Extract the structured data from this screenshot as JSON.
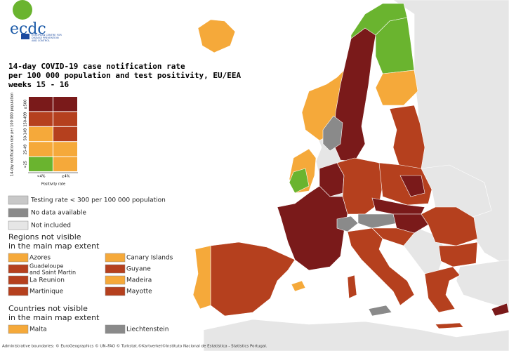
{
  "logo": {
    "name": "ecdc",
    "subtitle": [
      "EUROPEAN CENTRE FOR",
      "DISEASE PREVENTION",
      "AND CONTROL"
    ]
  },
  "title": [
    "14-day COVID-19 case notification rate",
    "per 100 000 population and test positivity, EU/EEA",
    "weeks 15 - 16"
  ],
  "matrix": {
    "y_label": "14-day notification rate per 100 000 population",
    "rows": [
      "≥500",
      "150-499",
      "50-149",
      "25-49",
      "<25"
    ],
    "columns": [
      "<4%",
      "≥4%"
    ],
    "x_label": "Positivity rate",
    "colors": [
      [
        "#7a1a1a",
        "#7a1a1a"
      ],
      [
        "#b5401e",
        "#b5401e"
      ],
      [
        "#f5a93a",
        "#b5401e"
      ],
      [
        "#f5a93a",
        "#f5a93a"
      ],
      [
        "#6ab42f",
        "#f5a93a"
      ]
    ]
  },
  "status_legend": [
    {
      "label": "Testing rate < 300 per 100 000 population",
      "color": "#c8c8c8"
    },
    {
      "label": "No data available",
      "color": "#8a8a8a"
    },
    {
      "label": "Not included",
      "color": "#e6e6e6"
    }
  ],
  "regions": {
    "heading": [
      "Regions not visible",
      "in the main map extent"
    ],
    "items": [
      {
        "label": "Azores",
        "color": "#f5a93a"
      },
      {
        "label": "Canary Islands",
        "color": "#f5a93a"
      },
      {
        "label": [
          "Guadeloupe",
          "and Saint Martin"
        ],
        "color": "#b5401e"
      },
      {
        "label": "Guyane",
        "color": "#b5401e"
      },
      {
        "label": "La Reunion",
        "color": "#b5401e"
      },
      {
        "label": "Madeira",
        "color": "#f5a93a"
      },
      {
        "label": "Martinique",
        "color": "#b5401e"
      },
      {
        "label": "Mayotte",
        "color": "#b5401e"
      }
    ]
  },
  "countries": {
    "heading": [
      "Countries not visible",
      "in the main map extent"
    ],
    "items": [
      {
        "label": "Malta",
        "color": "#f5a93a"
      },
      {
        "label": "Liechtenstein",
        "color": "#8a8a8a"
      }
    ]
  },
  "footer": "Administrative boundaries: © EuroGeographics © UN–FAO © Turkstat.©Kartverket©Instituto Nacional de Estatística - Statistics Portugal."
}
